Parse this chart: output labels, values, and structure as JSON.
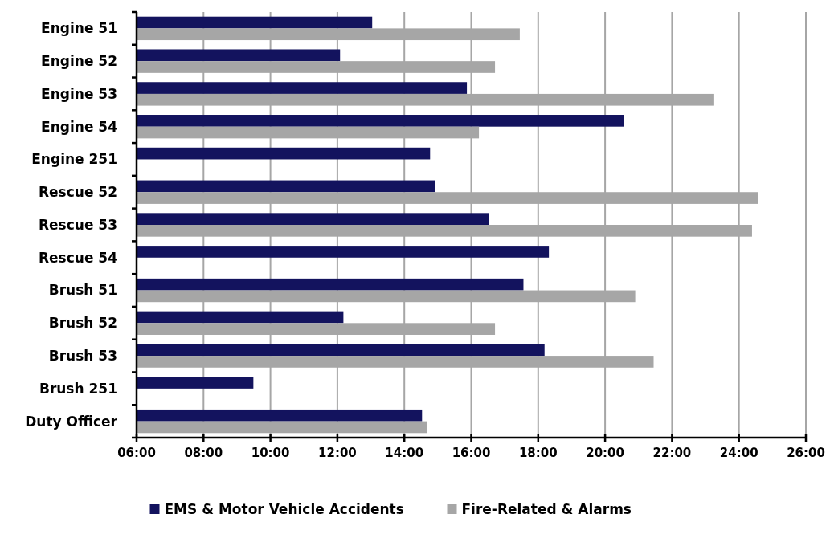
{
  "chart_data": {
    "type": "bar",
    "orientation": "horizontal",
    "categories": [
      "Engine 51",
      "Engine 52",
      "Engine 53",
      "Engine 54",
      "Engine 251",
      "Rescue 52",
      "Rescue 53",
      "Rescue 54",
      "Brush 51",
      "Brush 52",
      "Brush 53",
      "Brush 251",
      "Duty Officer"
    ],
    "series": [
      {
        "name": "EMS & Motor Vehicle Accidents",
        "color": "#13135e",
        "values": [
          13.04,
          12.08,
          15.87,
          20.56,
          14.77,
          14.91,
          16.52,
          18.32,
          17.56,
          12.18,
          18.19,
          9.49,
          14.53
        ]
      },
      {
        "name": "Fire-Related & Alarms",
        "color": "#a6a6a6",
        "values": [
          17.45,
          16.71,
          23.26,
          16.23,
          null,
          24.58,
          24.39,
          null,
          20.9,
          16.71,
          21.45,
          null,
          14.68
        ]
      }
    ],
    "xlim": [
      6,
      26
    ],
    "xticks": [
      {
        "value": 6,
        "label": "06:00"
      },
      {
        "value": 8,
        "label": "08:00"
      },
      {
        "value": 10,
        "label": "10:00"
      },
      {
        "value": 12,
        "label": "12:00"
      },
      {
        "value": 14,
        "label": "14:00"
      },
      {
        "value": 16,
        "label": "16:00"
      },
      {
        "value": 18,
        "label": "18:00"
      },
      {
        "value": 20,
        "label": "20:00"
      },
      {
        "value": 22,
        "label": "22:00"
      },
      {
        "value": 24,
        "label": "24:00"
      },
      {
        "value": 26,
        "label": "26:00"
      }
    ],
    "grid": "x",
    "legend": "bottom"
  }
}
